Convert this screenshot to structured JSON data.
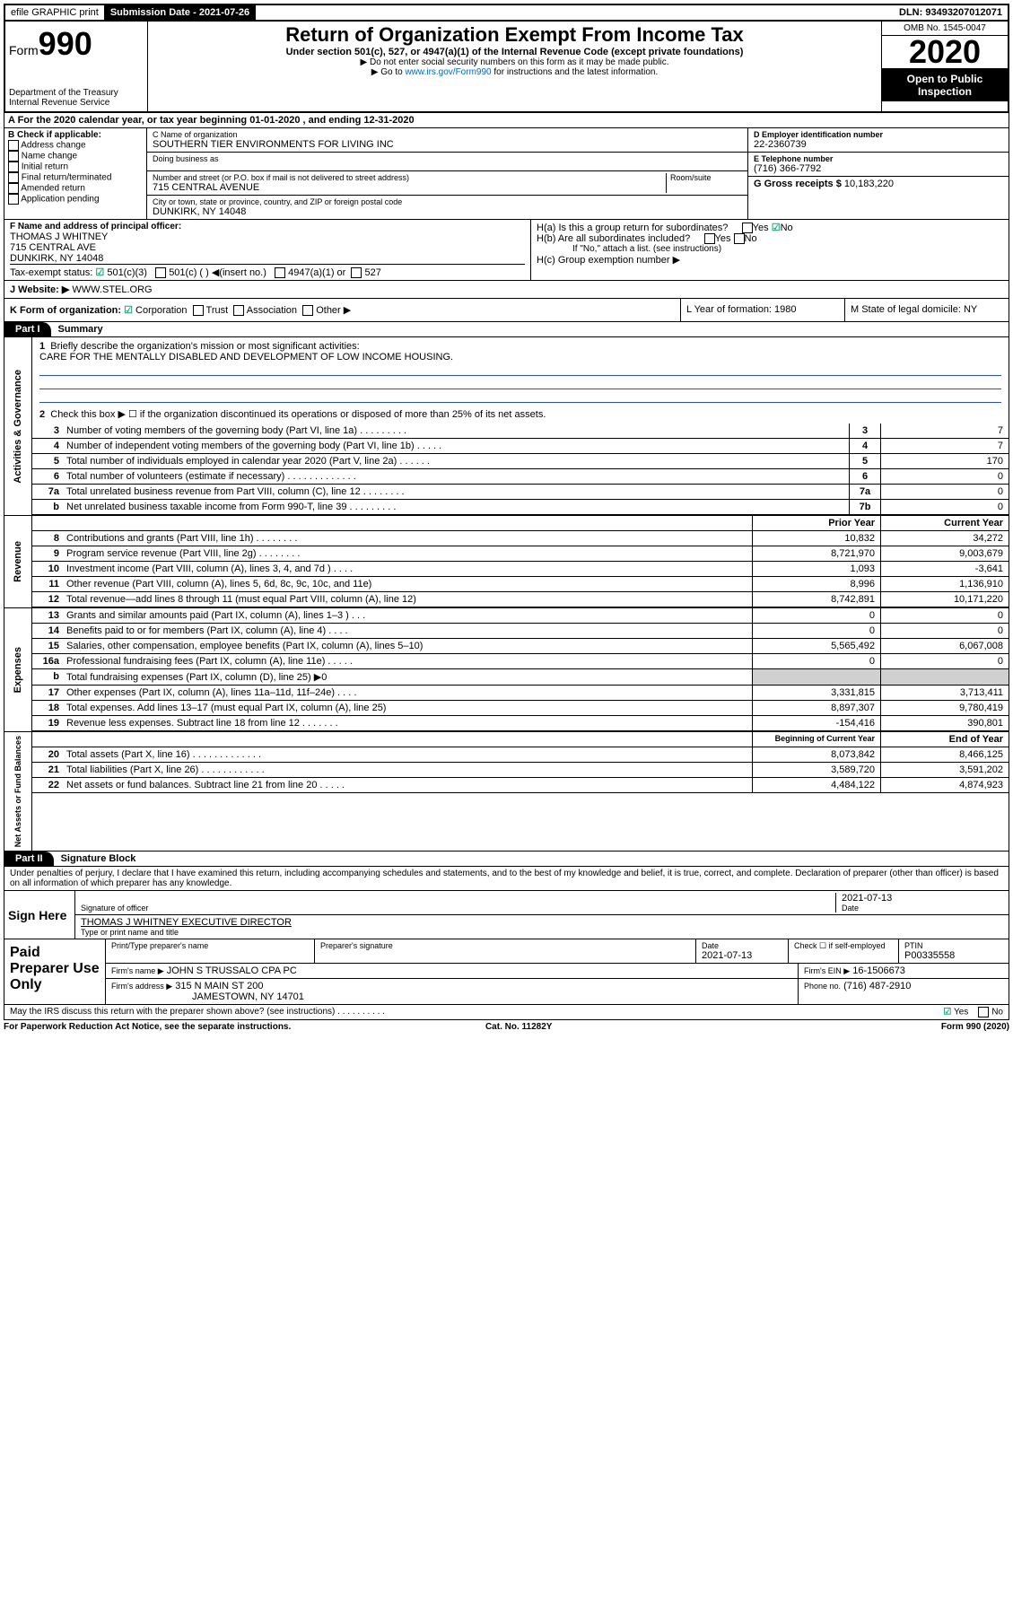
{
  "top": {
    "efile": "efile GRAPHIC print",
    "submission_label": "Submission Date - 2021-07-26",
    "dln": "DLN: 93493207012071"
  },
  "header": {
    "form_label": "Form",
    "form_number": "990",
    "dept": "Department of the Treasury",
    "irs": "Internal Revenue Service",
    "title": "Return of Organization Exempt From Income Tax",
    "subtitle": "Under section 501(c), 527, or 4947(a)(1) of the Internal Revenue Code (except private foundations)",
    "note1": "▶ Do not enter social security numbers on this form as it may be made public.",
    "note2_pre": "▶ Go to ",
    "note2_link": "www.irs.gov/Form990",
    "note2_post": " for instructions and the latest information.",
    "omb": "OMB No. 1545-0047",
    "year": "2020",
    "open": "Open to Public Inspection"
  },
  "line_a": "A For the 2020 calendar year, or tax year beginning 01-01-2020    , and ending 12-31-2020",
  "col_b": {
    "hdr": "B Check if applicable:",
    "items": [
      "Address change",
      "Name change",
      "Initial return",
      "Final return/terminated",
      "Amended return",
      "Application pending"
    ]
  },
  "col_c": {
    "name_lbl": "C Name of organization",
    "name": "SOUTHERN TIER ENVIRONMENTS FOR LIVING INC",
    "dba_lbl": "Doing business as",
    "addr_lbl": "Number and street (or P.O. box if mail is not delivered to street address)",
    "room_lbl": "Room/suite",
    "addr": "715 CENTRAL AVENUE",
    "city_lbl": "City or town, state or province, country, and ZIP or foreign postal code",
    "city": "DUNKIRK, NY  14048"
  },
  "col_d": {
    "lbl": "D Employer identification number",
    "val": "22-2360739"
  },
  "col_e": {
    "lbl": "E Telephone number",
    "val": "(716) 366-7792"
  },
  "col_g": {
    "lbl": "G Gross receipts $ ",
    "val": "10,183,220"
  },
  "col_f": {
    "lbl": "F  Name and address of principal officer:",
    "name": "THOMAS J WHITNEY",
    "addr1": "715 CENTRAL AVE",
    "addr2": "DUNKIRK, NY  14048"
  },
  "col_h": {
    "ha": "H(a)  Is this a group return for subordinates?",
    "hb": "H(b)  Are all subordinates included?",
    "hb_note": "If \"No,\" attach a list. (see instructions)",
    "hc": "H(c)  Group exemption number ▶",
    "yes": "Yes",
    "no": "No"
  },
  "tax_status": {
    "lbl": "Tax-exempt status:",
    "o1": "501(c)(3)",
    "o2": "501(c) (  ) ◀(insert no.)",
    "o3": "4947(a)(1) or",
    "o4": "527"
  },
  "website": {
    "lbl": "J Website: ▶",
    "val": "WWW.STEL.ORG"
  },
  "line_k": {
    "lbl": "K Form of organization:",
    "o1": "Corporation",
    "o2": "Trust",
    "o3": "Association",
    "o4": "Other ▶",
    "l": "L Year of formation: 1980",
    "m": "M State of legal domicile: NY"
  },
  "part1": {
    "hdr": "Part I",
    "title": "Summary"
  },
  "gov": {
    "side": "Activities & Governance",
    "l1": "Briefly describe the organization's mission or most significant activities:",
    "mission": "CARE FOR THE MENTALLY DISABLED AND DEVELOPMENT OF LOW INCOME HOUSING.",
    "l2": "Check this box ▶ ☐  if the organization discontinued its operations or disposed of more than 25% of its net assets.",
    "rows": [
      {
        "n": "3",
        "d": "Number of voting members of the governing body (Part VI, line 1a)  .   .   .   .   .   .   .   .   .",
        "b": "3",
        "v": "7"
      },
      {
        "n": "4",
        "d": "Number of independent voting members of the governing body (Part VI, line 1b)   .   .   .   .   .",
        "b": "4",
        "v": "7"
      },
      {
        "n": "5",
        "d": "Total number of individuals employed in calendar year 2020 (Part V, line 2a)   .   .   .   .   .   .",
        "b": "5",
        "v": "170"
      },
      {
        "n": "6",
        "d": "Total number of volunteers (estimate if necessary)   .   .   .   .   .   .   .   .   .   .   .   .   .",
        "b": "6",
        "v": "0"
      },
      {
        "n": "7a",
        "d": "Total unrelated business revenue from Part VIII, column (C), line 12   .   .   .   .   .   .   .   .",
        "b": "7a",
        "v": "0"
      },
      {
        "n": "b",
        "d": "Net unrelated business taxable income from Form 990-T, line 39  .   .   .   .   .   .   .   .   .",
        "b": "7b",
        "v": "0"
      }
    ]
  },
  "rev": {
    "side": "Revenue",
    "h_prior": "Prior Year",
    "h_cur": "Current Year",
    "rows": [
      {
        "n": "8",
        "d": "Contributions and grants (Part VIII, line 1h)   .   .   .   .   .   .   .   .",
        "p": "10,832",
        "c": "34,272"
      },
      {
        "n": "9",
        "d": "Program service revenue (Part VIII, line 2g)   .   .   .   .   .   .   .   .",
        "p": "8,721,970",
        "c": "9,003,679"
      },
      {
        "n": "10",
        "d": "Investment income (Part VIII, column (A), lines 3, 4, and 7d )   .   .   .   .",
        "p": "1,093",
        "c": "-3,641"
      },
      {
        "n": "11",
        "d": "Other revenue (Part VIII, column (A), lines 5, 6d, 8c, 9c, 10c, and 11e)",
        "p": "8,996",
        "c": "1,136,910"
      },
      {
        "n": "12",
        "d": "Total revenue—add lines 8 through 11 (must equal Part VIII, column (A), line 12)",
        "p": "8,742,891",
        "c": "10,171,220"
      }
    ]
  },
  "exp": {
    "side": "Expenses",
    "rows": [
      {
        "n": "13",
        "d": "Grants and similar amounts paid (Part IX, column (A), lines 1–3 )   .   .   .",
        "p": "0",
        "c": "0"
      },
      {
        "n": "14",
        "d": "Benefits paid to or for members (Part IX, column (A), line 4)   .   .   .   .",
        "p": "0",
        "c": "0"
      },
      {
        "n": "15",
        "d": "Salaries, other compensation, employee benefits (Part IX, column (A), lines 5–10)",
        "p": "5,565,492",
        "c": "6,067,008"
      },
      {
        "n": "16a",
        "d": "Professional fundraising fees (Part IX, column (A), line 11e)   .   .   .   .   .",
        "p": "0",
        "c": "0"
      },
      {
        "n": "b",
        "d": "Total fundraising expenses (Part IX, column (D), line 25) ▶0",
        "p": "",
        "c": "",
        "shade": true
      },
      {
        "n": "17",
        "d": "Other expenses (Part IX, column (A), lines 11a–11d, 11f–24e)   .   .   .   .",
        "p": "3,331,815",
        "c": "3,713,411"
      },
      {
        "n": "18",
        "d": "Total expenses. Add lines 13–17 (must equal Part IX, column (A), line 25)",
        "p": "8,897,307",
        "c": "9,780,419"
      },
      {
        "n": "19",
        "d": "Revenue less expenses. Subtract line 18 from line 12   .   .   .   .   .   .   .",
        "p": "-154,416",
        "c": "390,801"
      }
    ]
  },
  "net": {
    "side": "Net Assets or Fund Balances",
    "h_beg": "Beginning of Current Year",
    "h_end": "End of Year",
    "rows": [
      {
        "n": "20",
        "d": "Total assets (Part X, line 16)  .   .   .   .   .   .   .   .   .   .   .   .   .",
        "p": "8,073,842",
        "c": "8,466,125"
      },
      {
        "n": "21",
        "d": "Total liabilities (Part X, line 26)  .   .   .   .   .   .   .   .   .   .   .   .",
        "p": "3,589,720",
        "c": "3,591,202"
      },
      {
        "n": "22",
        "d": "Net assets or fund balances. Subtract line 21 from line 20  .   .   .   .   .",
        "p": "4,484,122",
        "c": "4,874,923"
      }
    ]
  },
  "part2": {
    "hdr": "Part II",
    "title": "Signature Block"
  },
  "perjury": "Under penalties of perjury, I declare that I have examined this return, including accompanying schedules and statements, and to the best of my knowledge and belief, it is true, correct, and complete. Declaration of preparer (other than officer) is based on all information of which preparer has any knowledge.",
  "sign": {
    "here": "Sign Here",
    "date": "2021-07-13",
    "sig_lbl": "Signature of officer",
    "date_lbl": "Date",
    "name": "THOMAS J WHITNEY  EXECUTIVE DIRECTOR",
    "name_lbl": "Type or print name and title"
  },
  "paid": {
    "title": "Paid Preparer Use Only",
    "r1": {
      "c1_lbl": "Print/Type preparer's name",
      "c2_lbl": "Preparer's signature",
      "c3_lbl": "Date",
      "c3": "2021-07-13",
      "c4": "Check ☐ if self-employed",
      "c5_lbl": "PTIN",
      "c5": "P00335558"
    },
    "r2": {
      "c1_lbl": "Firm's name    ▶",
      "c1": "JOHN S TRUSSALO CPA PC",
      "c2_lbl": "Firm's EIN ▶",
      "c2": "16-1506673"
    },
    "r3": {
      "c1_lbl": "Firm's address ▶",
      "c1": "315 N MAIN ST 200",
      "c1b": "JAMESTOWN, NY  14701",
      "c2_lbl": "Phone no.",
      "c2": "(716) 487-2910"
    }
  },
  "discuss": {
    "q": "May the IRS discuss this return with the preparer shown above? (see instructions)   .   .   .   .   .   .   .   .   .   .",
    "yes": "Yes",
    "no": "No"
  },
  "bottom": {
    "l": "For Paperwork Reduction Act Notice, see the separate instructions.",
    "m": "Cat. No. 11282Y",
    "r": "Form 990 (2020)"
  }
}
